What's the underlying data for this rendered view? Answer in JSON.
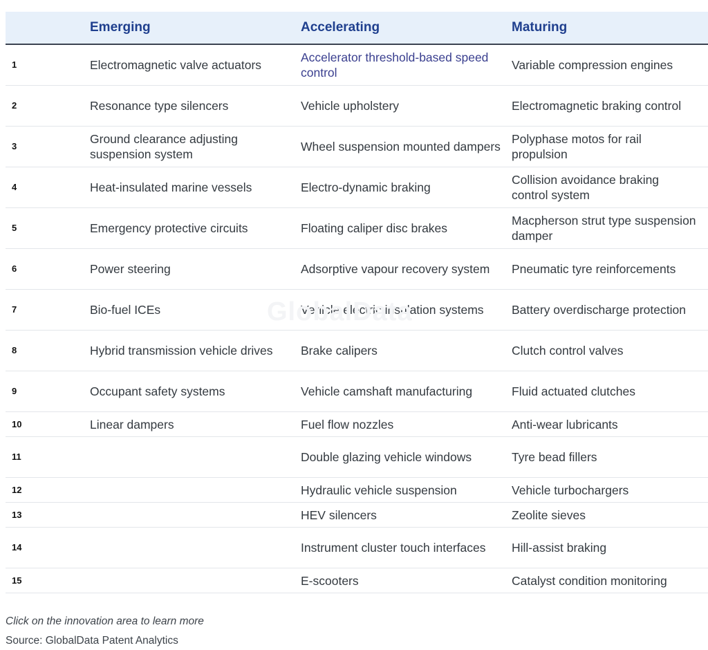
{
  "table": {
    "headers": {
      "num": "",
      "emerging": "Emerging",
      "accelerating": "Accelerating",
      "maturing": "Maturing"
    },
    "rows": [
      {
        "num": "1",
        "emerging": "Electromagnetic valve actuators",
        "accelerating": "Accelerator threshold-based speed control",
        "maturing": "Variable compression engines"
      },
      {
        "num": "2",
        "emerging": "Resonance type silencers",
        "accelerating": "Vehicle upholstery",
        "maturing": "Electromagnetic braking control"
      },
      {
        "num": "3",
        "emerging": "Ground clearance adjusting suspension system",
        "accelerating": "Wheel suspension mounted dampers",
        "maturing": "Polyphase motos for rail propulsion"
      },
      {
        "num": "4",
        "emerging": "Heat-insulated marine vessels",
        "accelerating": "Electro-dynamic braking",
        "maturing": "Collision avoidance braking control system"
      },
      {
        "num": "5",
        "emerging": "Emergency protective circuits",
        "accelerating": "Floating caliper disc brakes",
        "maturing": "Macpherson strut type suspension damper"
      },
      {
        "num": "6",
        "emerging": "Power steering",
        "accelerating": "Adsorptive vapour recovery system",
        "maturing": "Pneumatic tyre reinforcements"
      },
      {
        "num": "7",
        "emerging": "Bio-fuel ICEs",
        "accelerating": "Vehicle electric insulation systems",
        "maturing": "Battery overdischarge protection"
      },
      {
        "num": "8",
        "emerging": "Hybrid transmission vehicle drives",
        "accelerating": "Brake calipers",
        "maturing": "Clutch control valves"
      },
      {
        "num": "9",
        "emerging": "Occupant safety systems",
        "accelerating": "Vehicle camshaft manufacturing",
        "maturing": "Fluid actuated clutches"
      },
      {
        "num": "10",
        "emerging": "Linear dampers",
        "accelerating": "Fuel flow nozzles",
        "maturing": "Anti-wear lubricants"
      },
      {
        "num": "11",
        "emerging": "",
        "accelerating": "Double glazing vehicle windows",
        "maturing": "Tyre bead fillers"
      },
      {
        "num": "12",
        "emerging": "",
        "accelerating": "Hydraulic vehicle suspension",
        "maturing": "Vehicle turbochargers"
      },
      {
        "num": "13",
        "emerging": "",
        "accelerating": "HEV silencers",
        "maturing": "Zeolite sieves"
      },
      {
        "num": "14",
        "emerging": "",
        "accelerating": "Instrument cluster touch interfaces",
        "maturing": "Hill-assist braking"
      },
      {
        "num": "15",
        "emerging": "",
        "accelerating": "E-scooters",
        "maturing": "Catalyst condition monitoring"
      }
    ]
  },
  "watermark": "GlobalData",
  "note": "Click on the innovation area to learn more",
  "source": "Source: GlobalData Patent Analytics",
  "colors": {
    "header_bg": "#e7f0fa",
    "header_text": "#1f3f8e",
    "link_text": "#3a3f8f",
    "body_text": "#343a40"
  }
}
